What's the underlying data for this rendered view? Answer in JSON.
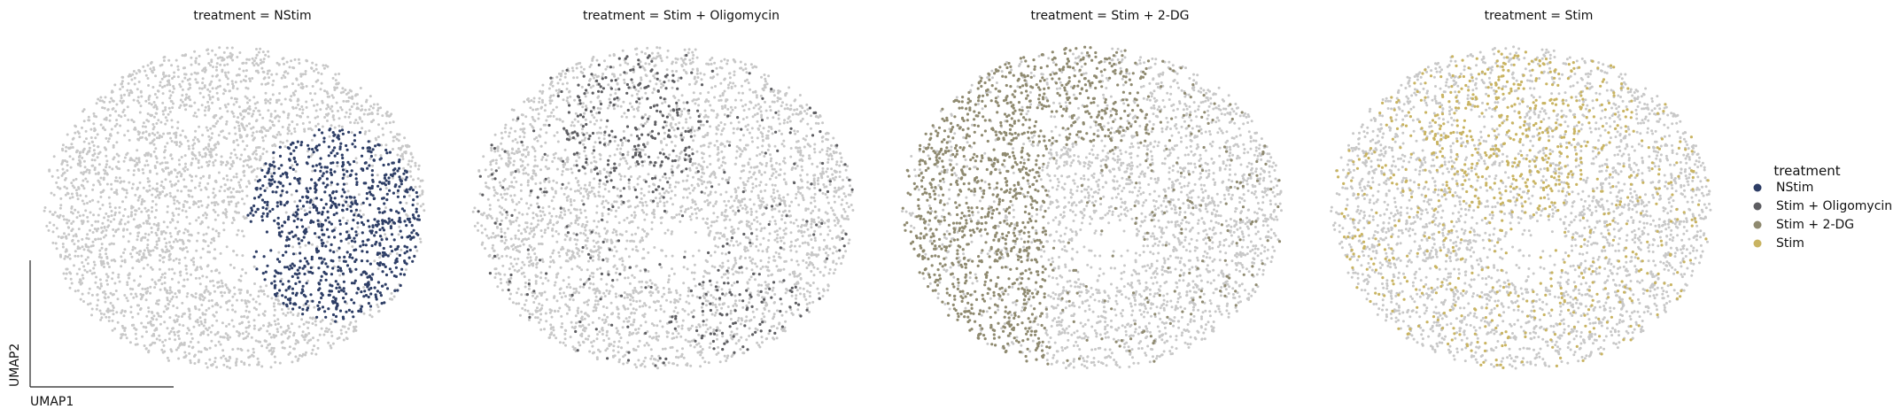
{
  "chart_data": {
    "type": "scatter",
    "embedding": "UMAP",
    "xlabel": "UMAP1",
    "ylabel": "UMAP2",
    "grid": false,
    "background_color": "#c8c8c8",
    "legend": {
      "title": "treatment",
      "placement": "right",
      "entries": [
        {
          "label": "NStim",
          "color": "#2e3e66"
        },
        {
          "label": "Stim + Oligomycin",
          "color": "#5e5e62"
        },
        {
          "label": "Stim + 2-DG",
          "color": "#8f8a70"
        },
        {
          "label": "Stim",
          "color": "#c9b462"
        }
      ]
    },
    "panels": [
      {
        "title": "treatment = NStim",
        "highlight": "NStim",
        "color": "#2e3e66",
        "region": "right-center",
        "density": "dense"
      },
      {
        "title": "treatment = Stim + Oligomycin",
        "highlight": "Stim + Oligomycin",
        "color": "#5e5e62",
        "region": "scattered, upper-center and lower-right",
        "density": "sparse"
      },
      {
        "title": "treatment = Stim + 2-DG",
        "highlight": "Stim + 2-DG",
        "color": "#8f8a70",
        "region": "left and top",
        "density": "dense"
      },
      {
        "title": "treatment = Stim",
        "highlight": "Stim",
        "color": "#c9b462",
        "region": "scattered throughout",
        "density": "medium"
      }
    ]
  }
}
